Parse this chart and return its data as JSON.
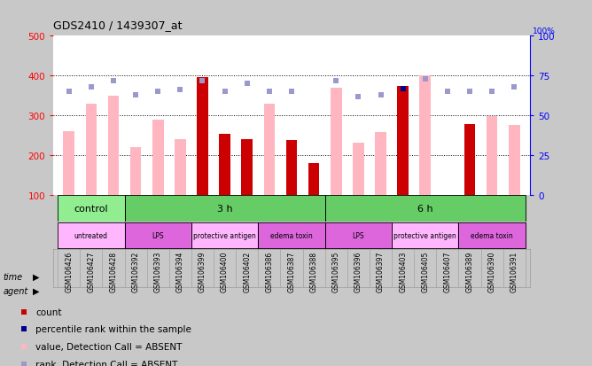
{
  "title": "GDS2410 / 1439307_at",
  "samples": [
    "GSM106426",
    "GSM106427",
    "GSM106428",
    "GSM106392",
    "GSM106393",
    "GSM106394",
    "GSM106399",
    "GSM106400",
    "GSM106402",
    "GSM106386",
    "GSM106387",
    "GSM106388",
    "GSM106395",
    "GSM106396",
    "GSM106397",
    "GSM106403",
    "GSM106405",
    "GSM106407",
    "GSM106389",
    "GSM106390",
    "GSM106391"
  ],
  "count_values": [
    null,
    null,
    null,
    null,
    null,
    null,
    395,
    253,
    240,
    null,
    238,
    180,
    null,
    null,
    null,
    373,
    null,
    null,
    278,
    null,
    null
  ],
  "absent_values": [
    260,
    330,
    350,
    220,
    290,
    240,
    null,
    null,
    null,
    330,
    null,
    null,
    370,
    232,
    258,
    null,
    400,
    null,
    null,
    297,
    275
  ],
  "percentile_present": [
    null,
    null,
    null,
    null,
    null,
    null,
    null,
    null,
    null,
    null,
    null,
    null,
    null,
    null,
    null,
    67,
    null,
    null,
    null,
    null,
    null
  ],
  "percentile_absent": [
    65,
    68,
    72,
    63,
    65,
    66,
    72,
    65,
    70,
    65,
    65,
    null,
    72,
    62,
    63,
    null,
    73,
    65,
    65,
    65,
    68
  ],
  "ylim_left": [
    100,
    500
  ],
  "ylim_right": [
    0,
    100
  ],
  "yticks_left": [
    100,
    200,
    300,
    400,
    500
  ],
  "yticks_right": [
    0,
    25,
    50,
    75,
    100
  ],
  "time_groups": [
    {
      "label": "control",
      "start": 0,
      "end": 3,
      "color": "#90EE90"
    },
    {
      "label": "3 h",
      "start": 3,
      "end": 12,
      "color": "#66CC66"
    },
    {
      "label": "6 h",
      "start": 12,
      "end": 21,
      "color": "#66CC66"
    }
  ],
  "agent_groups": [
    {
      "label": "untreated",
      "start": 0,
      "end": 3,
      "color": "#FFB6FF"
    },
    {
      "label": "LPS",
      "start": 3,
      "end": 6,
      "color": "#DD66DD"
    },
    {
      "label": "protective antigen",
      "start": 6,
      "end": 9,
      "color": "#FFB6FF"
    },
    {
      "label": "edema toxin",
      "start": 9,
      "end": 12,
      "color": "#DD66DD"
    },
    {
      "label": "LPS",
      "start": 12,
      "end": 15,
      "color": "#DD66DD"
    },
    {
      "label": "protective antigen",
      "start": 15,
      "end": 18,
      "color": "#FFB6FF"
    },
    {
      "label": "edema toxin",
      "start": 18,
      "end": 21,
      "color": "#DD66DD"
    }
  ],
  "count_color": "#CC0000",
  "absent_bar_color": "#FFB6C1",
  "percentile_present_color": "#00008B",
  "percentile_absent_color": "#9999CC",
  "grid_color": "#000000",
  "bg_color": "#C8C8C8",
  "plot_bg_color": "#FFFFFF",
  "legend_items": [
    {
      "color": "#CC0000",
      "label": "count"
    },
    {
      "color": "#00008B",
      "label": "percentile rank within the sample"
    },
    {
      "color": "#FFB6C1",
      "label": "value, Detection Call = ABSENT"
    },
    {
      "color": "#9999CC",
      "label": "rank, Detection Call = ABSENT"
    }
  ]
}
